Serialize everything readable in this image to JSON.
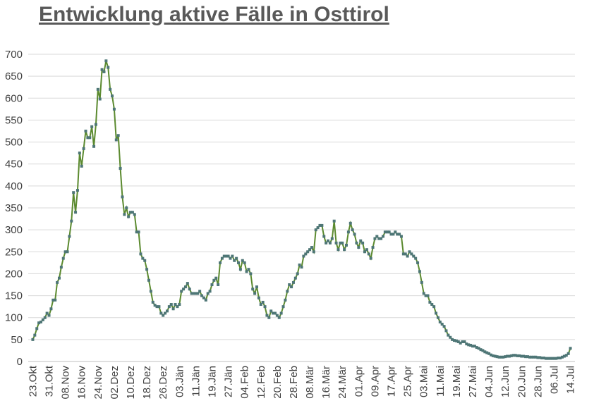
{
  "chart_data": {
    "type": "line",
    "title": "Entwicklung aktive Fälle in Osttirol",
    "categories": [
      "23.Okt",
      null,
      null,
      null,
      null,
      null,
      null,
      null,
      "31.Okt",
      null,
      null,
      null,
      null,
      null,
      null,
      null,
      "08.Nov",
      null,
      null,
      null,
      null,
      null,
      null,
      null,
      "16.Nov",
      null,
      null,
      null,
      null,
      null,
      null,
      null,
      "24.Nov",
      null,
      null,
      null,
      null,
      null,
      null,
      null,
      "02.Dez",
      null,
      null,
      null,
      null,
      null,
      null,
      null,
      "10.Dez",
      null,
      null,
      null,
      null,
      null,
      null,
      null,
      "18.Dez",
      null,
      null,
      null,
      null,
      null,
      null,
      null,
      "26.Dez",
      null,
      null,
      null,
      null,
      null,
      null,
      null,
      "03.Jän",
      null,
      null,
      null,
      null,
      null,
      null,
      null,
      "11.Jän",
      null,
      null,
      null,
      null,
      null,
      null,
      null,
      "19.Jän",
      null,
      null,
      null,
      null,
      null,
      null,
      null,
      "27.Jän",
      null,
      null,
      null,
      null,
      null,
      null,
      null,
      "04.Feb",
      null,
      null,
      null,
      null,
      null,
      null,
      null,
      "12.Feb",
      null,
      null,
      null,
      null,
      null,
      null,
      null,
      "20.Feb",
      null,
      null,
      null,
      null,
      null,
      null,
      null,
      "28.Feb",
      null,
      null,
      null,
      null,
      null,
      null,
      null,
      "08.Mär",
      null,
      null,
      null,
      null,
      null,
      null,
      null,
      "16.Mär",
      null,
      null,
      null,
      null,
      null,
      null,
      null,
      "24.Mär",
      null,
      null,
      null,
      null,
      null,
      null,
      null,
      "01.Apr",
      null,
      null,
      null,
      null,
      null,
      null,
      null,
      "09.Apr",
      null,
      null,
      null,
      null,
      null,
      null,
      null,
      "17.Apr",
      null,
      null,
      null,
      null,
      null,
      null,
      null,
      "25.Apr",
      null,
      null,
      null,
      null,
      null,
      null,
      null,
      "03.Mai",
      null,
      null,
      null,
      null,
      null,
      null,
      null,
      "11.Mai",
      null,
      null,
      null,
      null,
      null,
      null,
      null,
      "19.Mai",
      null,
      null,
      null,
      null,
      null,
      null,
      null,
      "27.Mai",
      null,
      null,
      null,
      null,
      null,
      null,
      null,
      "04.Jun",
      null,
      null,
      null,
      null,
      null,
      null,
      null,
      "12.Jun",
      null,
      null,
      null,
      null,
      null,
      null,
      null,
      "20.Jun",
      null,
      null,
      null,
      null,
      null,
      null,
      null,
      "28.Jun",
      null,
      null,
      null,
      null,
      null,
      null,
      null,
      "06.Jul",
      null,
      null,
      null,
      null,
      null,
      null,
      null,
      "14.Jul"
    ],
    "values": [
      50,
      60,
      75,
      88,
      90,
      95,
      100,
      110,
      105,
      120,
      140,
      140,
      180,
      190,
      215,
      235,
      250,
      250,
      285,
      320,
      385,
      340,
      390,
      475,
      445,
      485,
      525,
      510,
      510,
      535,
      490,
      540,
      620,
      598,
      665,
      660,
      685,
      670,
      620,
      605,
      575,
      505,
      515,
      440,
      375,
      335,
      350,
      330,
      340,
      340,
      335,
      295,
      295,
      245,
      235,
      230,
      210,
      185,
      160,
      135,
      128,
      125,
      125,
      110,
      105,
      110,
      115,
      125,
      130,
      120,
      130,
      125,
      130,
      160,
      165,
      170,
      178,
      165,
      155,
      155,
      155,
      155,
      160,
      150,
      145,
      140,
      155,
      160,
      175,
      185,
      190,
      175,
      225,
      235,
      240,
      240,
      240,
      235,
      240,
      230,
      235,
      225,
      210,
      230,
      225,
      205,
      210,
      200,
      165,
      155,
      170,
      145,
      130,
      135,
      125,
      105,
      100,
      115,
      110,
      110,
      105,
      100,
      110,
      125,
      140,
      160,
      175,
      170,
      180,
      190,
      200,
      220,
      215,
      240,
      245,
      250,
      255,
      260,
      250,
      300,
      305,
      310,
      310,
      285,
      270,
      275,
      270,
      280,
      320,
      270,
      255,
      270,
      270,
      255,
      265,
      295,
      315,
      300,
      290,
      270,
      260,
      275,
      270,
      250,
      255,
      245,
      235,
      260,
      280,
      285,
      280,
      280,
      285,
      295,
      295,
      295,
      290,
      290,
      295,
      290,
      290,
      285,
      245,
      245,
      240,
      250,
      245,
      240,
      235,
      225,
      205,
      180,
      155,
      150,
      150,
      135,
      130,
      125,
      110,
      100,
      90,
      85,
      80,
      70,
      60,
      55,
      50,
      48,
      47,
      45,
      42,
      45,
      45,
      40,
      38,
      37,
      35,
      35,
      32,
      30,
      27,
      25,
      22,
      20,
      18,
      15,
      13,
      12,
      11,
      10,
      10,
      10,
      11,
      12,
      12,
      13,
      14,
      14,
      13,
      13,
      12,
      12,
      11,
      11,
      10,
      10,
      10,
      10,
      9,
      9,
      8,
      8,
      7,
      7,
      7,
      7,
      7,
      7,
      8,
      8,
      10,
      12,
      14,
      18,
      30
    ],
    "color": "#5b8a2f",
    "marker_color": "#4e7676",
    "ylim": [
      0,
      700
    ],
    "yticks": [
      0,
      50,
      100,
      150,
      200,
      250,
      300,
      350,
      400,
      450,
      500,
      550,
      600,
      650,
      700
    ],
    "grid": true
  }
}
